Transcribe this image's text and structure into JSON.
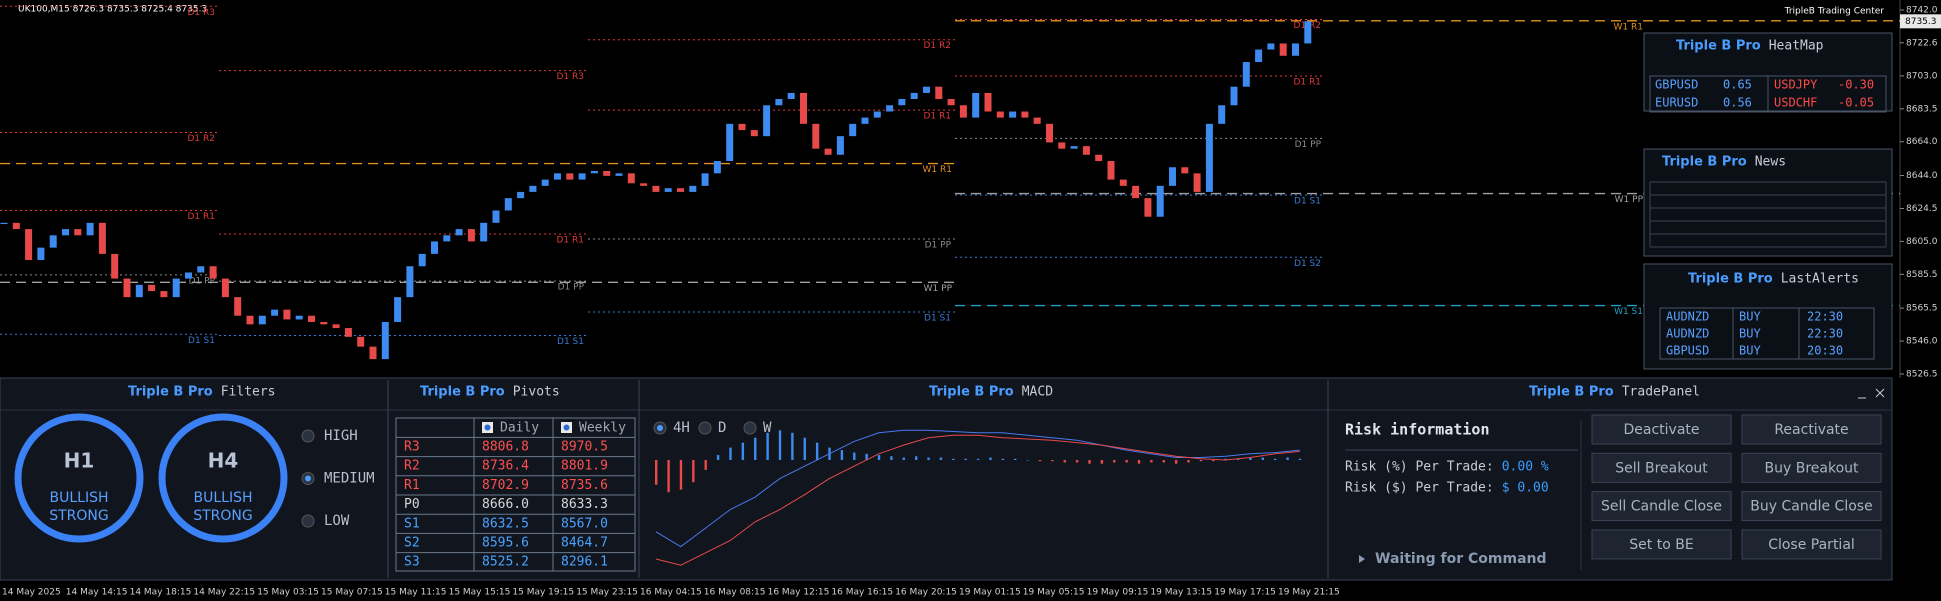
{
  "header": {
    "symbol_info": "UK100,M15  8726.3 8735.3 8725.4 8735.3",
    "brand": "TripleB Trading Center"
  },
  "price_chart": {
    "closes": [
      8616.0,
      8612.3,
      8594.0,
      8601.3,
      8608.6,
      8612.3,
      8608.6,
      8616.0,
      8597.6,
      8583.0,
      8572.0,
      8579.3,
      8575.6,
      8572.0,
      8583.0,
      8586.6,
      8590.3,
      8583.0,
      8572.0,
      8561.0,
      8555.9,
      8561.0,
      8564.6,
      8558.8,
      8561.0,
      8557.3,
      8555.9,
      8553.7,
      8548.5,
      8542.7,
      8535.3,
      8557.3,
      8572.0,
      8590.3,
      8597.6,
      8605.0,
      8608.6,
      8612.3,
      8605.0,
      8616.0,
      8623.3,
      8630.6,
      8634.3,
      8637.9,
      8641.6,
      8645.3,
      8641.6,
      8645.3,
      8646.7,
      8643.8,
      8645.3,
      8639.4,
      8637.9,
      8634.3,
      8636.5,
      8634.3,
      8637.9,
      8645.3,
      8652.6,
      8674.6,
      8670.9,
      8667.3,
      8685.6,
      8689.3,
      8692.9,
      8674.6,
      8659.9,
      8656.3,
      8667.3,
      8674.6,
      8678.3,
      8681.9,
      8685.6,
      8689.3,
      8692.9,
      8696.6,
      8689.3,
      8685.6,
      8678.3,
      8692.9,
      8681.9,
      8678.3,
      8681.9,
      8678.3,
      8674.6,
      8663.6,
      8659.9,
      8661.4,
      8656.3,
      8652.6,
      8641.6,
      8637.9,
      8630.6,
      8619.6,
      8637.9,
      8648.9,
      8645.3,
      8634.3,
      8674.6,
      8685.6,
      8696.6,
      8711.2,
      8718.6,
      8722.2,
      8714.9,
      8722.2,
      8735.3
    ],
    "current_price": 8735.3,
    "ylim": [
      8526.5,
      8742.0
    ],
    "yticks": [
      {
        "value": 8742.0,
        "label": "8742.0"
      },
      {
        "value": 8722.6,
        "label": "8722.6"
      },
      {
        "value": 8703.0,
        "label": "8703.0"
      },
      8683.5,
      {
        "value": 8664.0,
        "label": "8664.0"
      },
      {
        "value": 8644.0,
        "label": "8644.0"
      },
      8624.5,
      {
        "value": 8605.0,
        "label": "8605.0"
      },
      8585.5,
      8565.5,
      {
        "value": 8546.0,
        "label": "8546.0"
      },
      8526.5
    ],
    "xlabels": [
      "14 May 2025",
      "14 May 14:15",
      "14 May 18:15",
      "14 May 22:15",
      "15 May 03:15",
      "15 May 07:15",
      "15 May 11:15",
      "15 May 15:15",
      "15 May 19:15",
      "15 May 23:15",
      "16 May 04:15",
      "16 May 08:15",
      "16 May 12:15",
      "16 May 16:15",
      "16 May 20:15",
      "19 May 01:15",
      "19 May 05:15",
      "19 May 09:15",
      "19 May 13:15",
      "19 May 17:15",
      "19 May 21:15"
    ],
    "daily_pivots": [
      [
        {
          "label": "D1 R3",
          "value": 8744.2
        },
        {
          "label": "D1 R2",
          "value": 8669.5
        },
        {
          "label": "D1 R1",
          "value": 8623.3
        },
        {
          "label": "D1 PP",
          "value": 8585.2
        },
        {
          "label": "D1 S1",
          "value": 8550.0
        }
      ],
      [
        {
          "label": "D1 R3",
          "value": 8706.1
        },
        {
          "label": "D1 R1",
          "value": 8609.4
        },
        {
          "label": "D1 PP",
          "value": 8581.5
        },
        {
          "label": "D1 S1",
          "value": 8549.3
        }
      ],
      [
        {
          "label": "D1 R2",
          "value": 8724.4
        },
        {
          "label": "D1 R1",
          "value": 8682.7
        },
        {
          "label": "D1 PP",
          "value": 8606.4
        },
        {
          "label": "D1 S1",
          "value": 8563.2
        }
      ],
      [
        {
          "label": "D1 R2",
          "value": 8736.4
        },
        {
          "label": "D1 R1",
          "value": 8702.9
        },
        {
          "label": "D1 PP",
          "value": 8666.0
        },
        {
          "label": "D1 S1",
          "value": 8632.5
        },
        {
          "label": "D1 S2",
          "value": 8595.6
        }
      ]
    ],
    "weekly_pivots": [
      [
        {
          "label": "W1 R1",
          "value": 8651.1
        },
        {
          "label": "W1 PP",
          "value": 8580.8
        }
      ],
      [
        {
          "label": "W1 R1",
          "value": 8735.6
        },
        {
          "label": "W1 PP",
          "value": 8633.3
        },
        {
          "label": "W1 S1",
          "value": 8567.0
        }
      ]
    ]
  },
  "heatmap": {
    "brand": "Triple B Pro",
    "title": "HeatMap",
    "rows": [
      [
        "GBPUSD",
        "0.65",
        "USDJPY",
        "-0.30"
      ],
      [
        "EURUSD",
        "0.56",
        "USDCHF",
        "-0.05"
      ]
    ]
  },
  "news": {
    "brand": "Triple B Pro",
    "title": "News"
  },
  "alerts": {
    "brand": "Triple B Pro",
    "title": "LastAlerts",
    "rows": [
      [
        "AUDNZD",
        "BUY",
        "22:30"
      ],
      [
        "AUDNZD",
        "BUY",
        "22:30"
      ],
      [
        "GBPUSD",
        "BUY",
        "20:30"
      ]
    ]
  },
  "filters": {
    "brand": "Triple B Pro",
    "title": "Filters",
    "gauges": [
      {
        "tf": "H1",
        "line1": "BULLISH",
        "line2": "STRONG"
      },
      {
        "tf": "H4",
        "line1": "BULLISH",
        "line2": "STRONG"
      }
    ],
    "levels": [
      "HIGH",
      "MEDIUM",
      "LOW"
    ],
    "selected_level": "MEDIUM"
  },
  "pivots": {
    "brand": "Triple B Pro",
    "title": "Pivots",
    "columns": [
      "Daily",
      "Weekly"
    ],
    "rows": [
      [
        "R3",
        "8806.8",
        "8970.5"
      ],
      [
        "R2",
        "8736.4",
        "8801.9"
      ],
      [
        "R1",
        "8702.9",
        "8735.6"
      ],
      [
        "P0",
        "8666.0",
        "8633.3"
      ],
      [
        "S1",
        "8632.5",
        "8567.0"
      ],
      [
        "S2",
        "8595.6",
        "8464.7"
      ],
      [
        "S3",
        "8525.2",
        "8296.1"
      ]
    ]
  },
  "macd": {
    "brand": "Triple B Pro",
    "title": "MACD",
    "timeframes": [
      "4H",
      "D",
      "W"
    ],
    "selected_timeframe": "4H",
    "histogram": [
      -20,
      -26,
      -24,
      -18,
      -8,
      4,
      10,
      14,
      18,
      22,
      24,
      22,
      18,
      14,
      10,
      8,
      6,
      5,
      4,
      3,
      2,
      3,
      2,
      2,
      1,
      1,
      1,
      2,
      1,
      1,
      0,
      -1,
      -1,
      -2,
      -2,
      -3,
      -3,
      -2,
      -2,
      -3,
      -2,
      -2,
      -3,
      -2,
      -1,
      -1,
      1,
      1,
      2,
      2,
      1,
      2,
      1
    ],
    "macd": [
      -58,
      -70,
      -55,
      -40,
      -30,
      -15,
      -5,
      5,
      15,
      22,
      24,
      24,
      23,
      22,
      22,
      20,
      18,
      16,
      12,
      8,
      5,
      2,
      2,
      3,
      5,
      6,
      8
    ],
    "signal": [
      -80,
      -85,
      -75,
      -65,
      -50,
      -40,
      -28,
      -15,
      -5,
      5,
      12,
      18,
      20,
      20,
      18,
      17,
      16,
      14,
      12,
      9,
      6,
      3,
      1,
      0,
      2,
      5,
      7
    ]
  },
  "trade": {
    "brand": "Triple B Pro",
    "title": "TradePanel",
    "risk_title": "Risk information",
    "risk_rows": [
      {
        "label": "Risk (%) Per Trade:",
        "value": "0.00 %"
      },
      {
        "label": "Risk ($) Per Trade:",
        "value": "$ 0.00"
      }
    ],
    "status": "Waiting for Command",
    "buttons": [
      "Deactivate",
      "Reactivate",
      "Sell Breakout",
      "Buy Breakout",
      "Sell Candle Close",
      "Buy Candle Close",
      "Set to BE",
      "Close Partial"
    ]
  }
}
